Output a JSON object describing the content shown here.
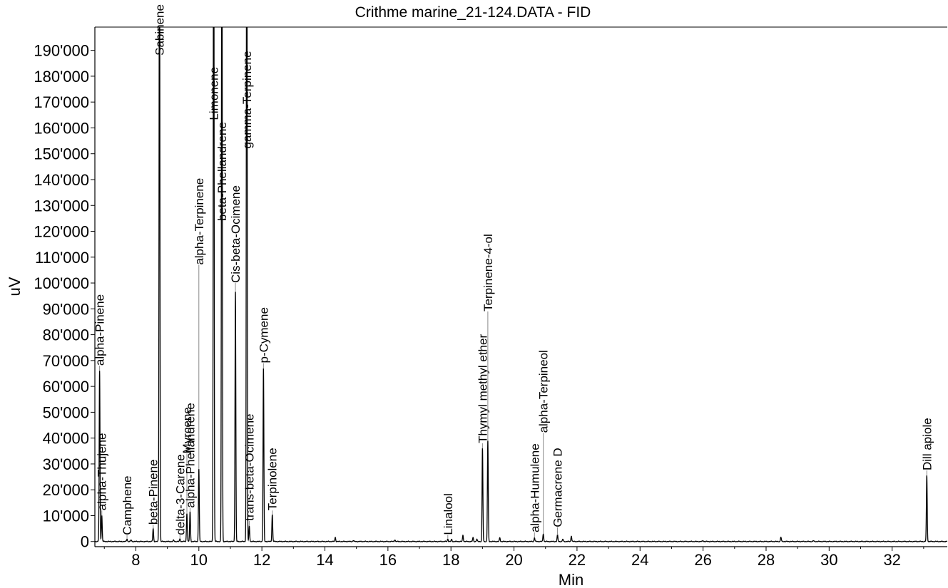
{
  "chart_data": {
    "type": "line",
    "title": "Crithme marine_21-124.DATA - FID",
    "xlabel": "Min",
    "ylabel": "uV",
    "xlim": [
      6.7,
      33.75
    ],
    "ylim": [
      -2000,
      199000
    ],
    "x_ticks": [
      8,
      10,
      12,
      14,
      16,
      18,
      20,
      22,
      24,
      26,
      28,
      30,
      32
    ],
    "x_tick_labels": [
      "8",
      "10",
      "12",
      "14",
      "16",
      "18",
      "20",
      "22",
      "24",
      "26",
      "28",
      "30",
      "32"
    ],
    "y_ticks": [
      0,
      10000,
      20000,
      30000,
      40000,
      50000,
      60000,
      70000,
      80000,
      90000,
      100000,
      110000,
      120000,
      130000,
      140000,
      150000,
      160000,
      170000,
      180000,
      190000
    ],
    "y_tick_labels": [
      "0",
      "10'000",
      "20'000",
      "30'000",
      "40'000",
      "50'000",
      "60'000",
      "70'000",
      "80'000",
      "90'000",
      "100'000",
      "110'000",
      "120'000",
      "130'000",
      "140'000",
      "150'000",
      "160'000",
      "170'000",
      "180'000",
      "190'000"
    ],
    "grid": false,
    "line_color": "#000000",
    "baseline": 0,
    "labeled_peaks": [
      {
        "name": "alpha-Pinene",
        "rt": 6.85,
        "height": 66000
      },
      {
        "name": "alpha-Thujene",
        "rt": 6.92,
        "height": 10000
      },
      {
        "name": "Camphene",
        "rt": 7.72,
        "height": 1000
      },
      {
        "name": "beta-Pinene",
        "rt": 8.55,
        "height": 5000
      },
      {
        "name": "Sabinene",
        "rt": 8.75,
        "height": 260000
      },
      {
        "name": "delta-3-Carene",
        "rt": 9.4,
        "height": 1000
      },
      {
        "name": "Myrcene",
        "rt": 9.62,
        "height": 11000
      },
      {
        "name": "alpha-Phellandrene",
        "rt": 9.72,
        "height": 11500
      },
      {
        "name": "alpha-Terpinene",
        "rt": 10.0,
        "height": 28000
      },
      {
        "name": "Limonene",
        "rt": 10.47,
        "height": 300000
      },
      {
        "name": "beta-Phellandrene",
        "rt": 10.73,
        "height": 280000
      },
      {
        "name": "Cis-beta-Ocimene",
        "rt": 11.16,
        "height": 97000
      },
      {
        "name": "gamma-Terpinene",
        "rt": 11.52,
        "height": 300000
      },
      {
        "name": "trans-beta-Ocimene",
        "rt": 11.6,
        "height": 6000
      },
      {
        "name": "p-Cymene",
        "rt": 12.05,
        "height": 67000
      },
      {
        "name": "Terpinolene",
        "rt": 12.33,
        "height": 10500
      },
      {
        "name": "Linalool",
        "rt": 17.9,
        "height": 1000
      },
      {
        "name": "Thymyl methyl ether",
        "rt": 19.0,
        "height": 36000
      },
      {
        "name": "Terpinene-4-ol",
        "rt": 19.17,
        "height": 39000
      },
      {
        "name": "alpha-Humulene",
        "rt": 20.65,
        "height": 1500
      },
      {
        "name": "alpha-Terpineol",
        "rt": 20.93,
        "height": 3000
      },
      {
        "name": "Germacrene D",
        "rt": 21.38,
        "height": 2500
      },
      {
        "name": "Dill apiole",
        "rt": 33.1,
        "height": 25500
      }
    ],
    "minor_peaks": [
      {
        "rt": 7.85,
        "height": 600
      },
      {
        "rt": 9.2,
        "height": 500
      },
      {
        "rt": 14.33,
        "height": 1600
      },
      {
        "rt": 14.9,
        "height": 400
      },
      {
        "rt": 16.22,
        "height": 700
      },
      {
        "rt": 18.02,
        "height": 800
      },
      {
        "rt": 18.38,
        "height": 2400
      },
      {
        "rt": 18.7,
        "height": 1500
      },
      {
        "rt": 18.82,
        "height": 900
      },
      {
        "rt": 19.55,
        "height": 1500
      },
      {
        "rt": 21.55,
        "height": 900
      },
      {
        "rt": 21.82,
        "height": 2200
      },
      {
        "rt": 26.0,
        "height": 350
      },
      {
        "rt": 28.47,
        "height": 1700
      },
      {
        "rt": 29.5,
        "height": 300
      }
    ]
  }
}
